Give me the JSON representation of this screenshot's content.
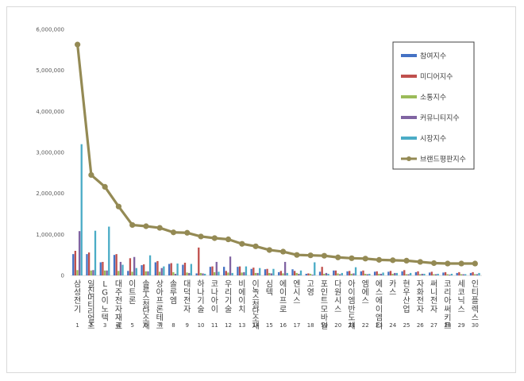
{
  "chart_data": {
    "type": "bar",
    "title": "",
    "xlabel": "",
    "ylabel": "",
    "ylim": [
      0,
      6000000
    ],
    "yticks": [
      "0",
      "1,000,000",
      "2,000,000",
      "3,000,000",
      "4,000,000",
      "5,000,000",
      "6,000,000"
    ],
    "ytick_values": [
      0,
      1000000,
      2000000,
      3000000,
      4000000,
      5000000,
      6000000
    ],
    "grid": false,
    "legend_position": "top-right",
    "ranks": [
      "1",
      "2",
      "3",
      "4",
      "5",
      "6",
      "7",
      "8",
      "9",
      "10",
      "11",
      "12",
      "13",
      "14",
      "15",
      "16",
      "17",
      "18",
      "19",
      "20",
      "21",
      "22",
      "23",
      "24",
      "25",
      "26",
      "27",
      "28",
      "29",
      "30"
    ],
    "categories": [
      "삼성전기",
      "일진머티리얼즈",
      "LG이노텍",
      "대주전자재료",
      "이트론",
      "솔루스첨단소재",
      "상아프론테크",
      "솔루엠",
      "대덕전자",
      "하나기술",
      "코나아이",
      "우리기술",
      "비에이치",
      "이녹스첨단소재",
      "심텍",
      "에이프로",
      "엔시스",
      "고영",
      "포인트모바일",
      "다원시스",
      "아이엠반도체",
      "엠에스",
      "에스에이엠티",
      "카스",
      "현우산업",
      "자화전자",
      "써니전자",
      "코리아써키트",
      "세코닉스",
      "인티플렉스"
    ],
    "series": [
      {
        "name": "참여지수",
        "color": "#4472c4",
        "values": [
          520000,
          520000,
          320000,
          500000,
          110000,
          250000,
          320000,
          280000,
          260000,
          50000,
          210000,
          210000,
          210000,
          160000,
          150000,
          80000,
          150000,
          40000,
          90000,
          120000,
          100000,
          100000,
          90000,
          90000,
          100000,
          80000,
          70000,
          70000,
          60000,
          60000
        ]
      },
      {
        "name": "미디어지수",
        "color": "#c0504d",
        "values": [
          600000,
          560000,
          330000,
          520000,
          420000,
          270000,
          350000,
          300000,
          310000,
          680000,
          220000,
          110000,
          220000,
          190000,
          160000,
          110000,
          110000,
          50000,
          210000,
          120000,
          110000,
          120000,
          100000,
          110000,
          130000,
          100000,
          90000,
          80000,
          80000,
          80000
        ]
      },
      {
        "name": "소통지수",
        "color": "#9bbb59",
        "values": [
          130000,
          120000,
          120000,
          110000,
          90000,
          100000,
          90000,
          80000,
          70000,
          60000,
          80000,
          70000,
          70000,
          60000,
          60000,
          50000,
          60000,
          40000,
          40000,
          50000,
          40000,
          40000,
          40000,
          40000,
          30000,
          30000,
          30000,
          30000,
          30000,
          30000
        ]
      },
      {
        "name": "커뮤니티지수",
        "color": "#8064a2",
        "values": [
          1080000,
          130000,
          120000,
          330000,
          450000,
          100000,
          180000,
          40000,
          60000,
          50000,
          330000,
          460000,
          80000,
          60000,
          50000,
          330000,
          40000,
          20000,
          60000,
          30000,
          50000,
          30000,
          40000,
          60000,
          30000,
          40000,
          30000,
          20000,
          30000,
          30000
        ]
      },
      {
        "name": "시장지수",
        "color": "#4bacc6",
        "values": [
          3200000,
          1090000,
          1190000,
          260000,
          180000,
          490000,
          220000,
          290000,
          280000,
          40000,
          90000,
          60000,
          220000,
          180000,
          160000,
          60000,
          120000,
          320000,
          40000,
          60000,
          200000,
          40000,
          70000,
          60000,
          60000,
          40000,
          40000,
          40000,
          30000,
          60000
        ]
      },
      {
        "name": "브랜드평판지수",
        "color": "#948a54",
        "type": "line",
        "values": [
          5630000,
          2450000,
          2160000,
          1680000,
          1230000,
          1200000,
          1160000,
          1050000,
          1040000,
          950000,
          910000,
          880000,
          770000,
          710000,
          620000,
          580000,
          500000,
          490000,
          480000,
          440000,
          420000,
          410000,
          380000,
          370000,
          360000,
          330000,
          300000,
          290000,
          290000,
          290000
        ]
      }
    ]
  }
}
